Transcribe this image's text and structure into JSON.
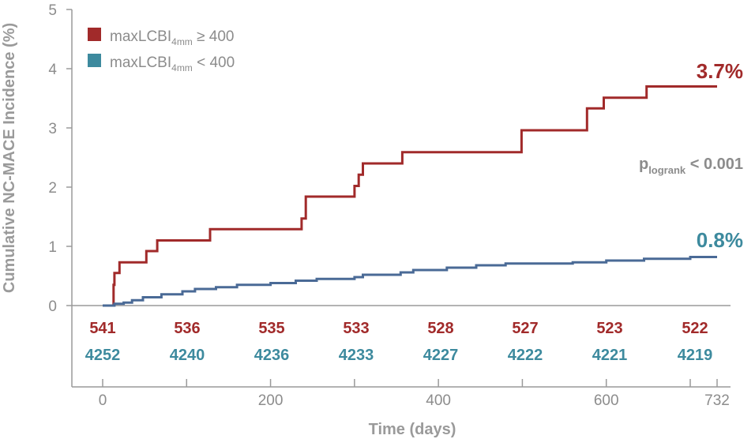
{
  "chart_data": {
    "type": "line",
    "step": true,
    "title": "",
    "xlabel": "Time (days)",
    "ylabel": "Cumulative NC-MACE Incidence (%)",
    "xlim": [
      0,
      732
    ],
    "ylim": [
      0,
      5
    ],
    "x_ticks": [
      0,
      200,
      400,
      600,
      732
    ],
    "y_ticks": [
      0,
      1,
      2,
      3,
      4,
      5
    ],
    "grid": false,
    "legend_position": "top-left",
    "colors": {
      "high": "#a12a2a",
      "low": "#3d8a9e",
      "low_line": "#4a6a96",
      "axis": "#9a9a9a",
      "text": "#8c8c8c"
    },
    "series": [
      {
        "id": "high",
        "legend_main": "maxLCBI",
        "legend_sub": "4mm",
        "legend_rel": " ≥ 400",
        "end_label": "3.7%",
        "x": [
          0,
          13,
          13,
          14,
          14,
          16,
          16,
          20,
          20,
          52,
          52,
          65,
          65,
          128,
          128,
          237,
          237,
          242,
          242,
          300,
          300,
          305,
          305,
          310,
          310,
          357,
          357,
          499,
          499,
          577,
          577,
          597,
          597,
          648,
          648,
          732
        ],
        "y": [
          0,
          0,
          0.35,
          0.35,
          0.55,
          0.55,
          0.55,
          0.55,
          0.73,
          0.73,
          0.92,
          0.92,
          1.1,
          1.1,
          1.29,
          1.29,
          1.47,
          1.47,
          1.84,
          1.84,
          2.02,
          2.02,
          2.21,
          2.21,
          2.4,
          2.4,
          2.59,
          2.59,
          2.96,
          2.96,
          3.33,
          3.33,
          3.51,
          3.51,
          3.7,
          3.7
        ]
      },
      {
        "id": "low",
        "legend_main": "maxLCBI",
        "legend_sub": "4mm",
        "legend_rel": " < 400",
        "end_label": "0.8%",
        "x": [
          0,
          14,
          14,
          25,
          25,
          35,
          35,
          48,
          48,
          70,
          70,
          95,
          95,
          110,
          110,
          135,
          135,
          160,
          160,
          200,
          200,
          230,
          230,
          255,
          255,
          300,
          300,
          310,
          310,
          355,
          355,
          370,
          370,
          410,
          410,
          445,
          445,
          480,
          480,
          560,
          560,
          600,
          600,
          645,
          645,
          700,
          700,
          732
        ],
        "y": [
          0,
          0,
          0.03,
          0.03,
          0.05,
          0.05,
          0.09,
          0.09,
          0.14,
          0.14,
          0.19,
          0.19,
          0.24,
          0.24,
          0.28,
          0.28,
          0.31,
          0.31,
          0.35,
          0.35,
          0.38,
          0.38,
          0.42,
          0.42,
          0.45,
          0.45,
          0.48,
          0.48,
          0.52,
          0.52,
          0.56,
          0.56,
          0.6,
          0.6,
          0.64,
          0.64,
          0.68,
          0.68,
          0.71,
          0.71,
          0.73,
          0.73,
          0.76,
          0.76,
          0.79,
          0.79,
          0.82,
          0.82
        ]
      }
    ],
    "risk_table": {
      "high": [
        "541",
        "536",
        "535",
        "533",
        "528",
        "527",
        "523",
        "522"
      ],
      "low": [
        "4252",
        "4240",
        "4236",
        "4233",
        "4227",
        "4222",
        "4221",
        "4219"
      ]
    },
    "pvalue": {
      "main": "p",
      "sub": "logrank",
      "rest": " < 0.001"
    }
  }
}
